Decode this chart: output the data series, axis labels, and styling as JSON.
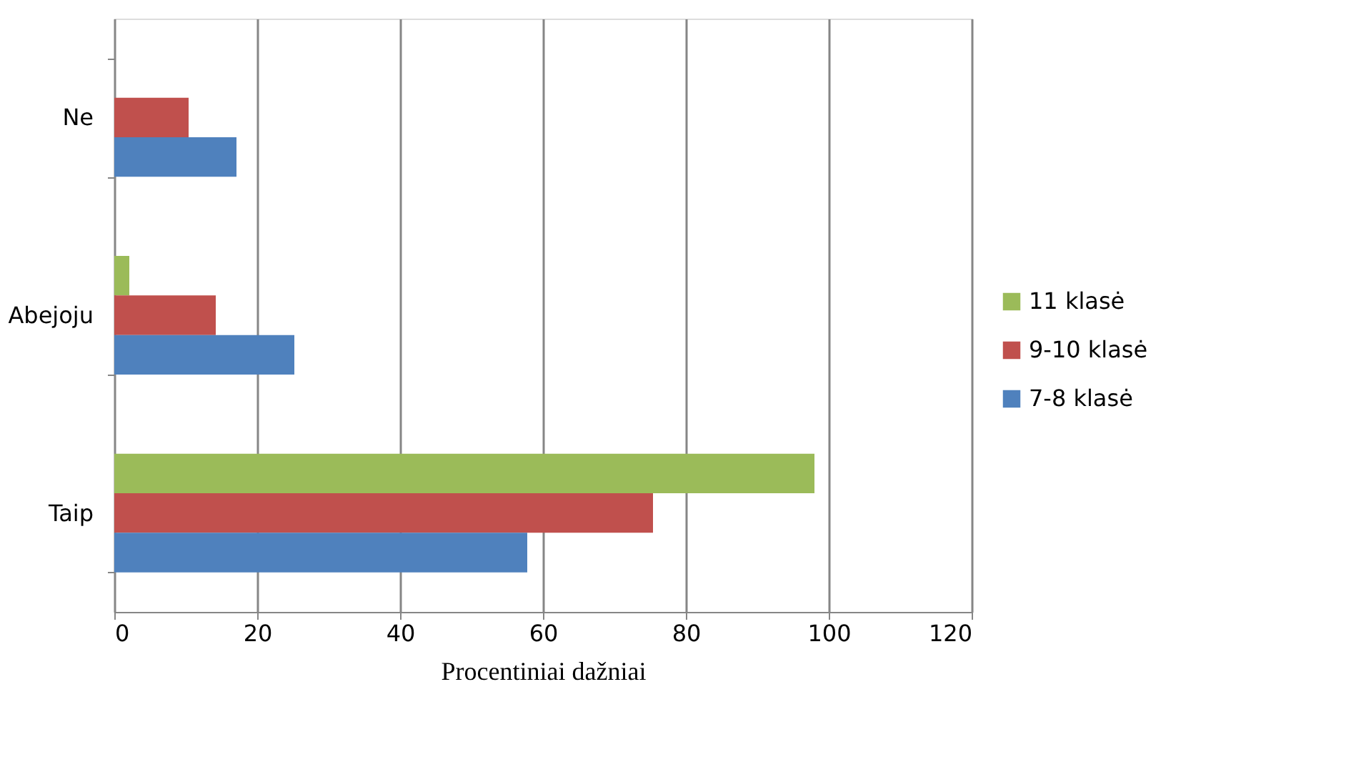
{
  "chart_data": {
    "type": "bar",
    "orientation": "horizontal",
    "xlabel": "Procentiniai dažniai",
    "categories": [
      "Ne",
      "Abejoju",
      "Taip"
    ],
    "series": [
      {
        "name": "11 klasė",
        "color": "#9bbb59",
        "values": [
          null,
          2.1,
          98.0
        ]
      },
      {
        "name": "9-10 klasė",
        "color": "#c0504d",
        "values": [
          10.4,
          14.2,
          75.4
        ]
      },
      {
        "name": "7-8 klasė",
        "color": "#4f81bd",
        "values": [
          17.1,
          25.2,
          57.8
        ]
      }
    ],
    "xlim": [
      0,
      120
    ],
    "xticks": [
      0,
      20,
      40,
      60,
      80,
      100,
      120
    ],
    "grid": "x",
    "legend": "right"
  }
}
